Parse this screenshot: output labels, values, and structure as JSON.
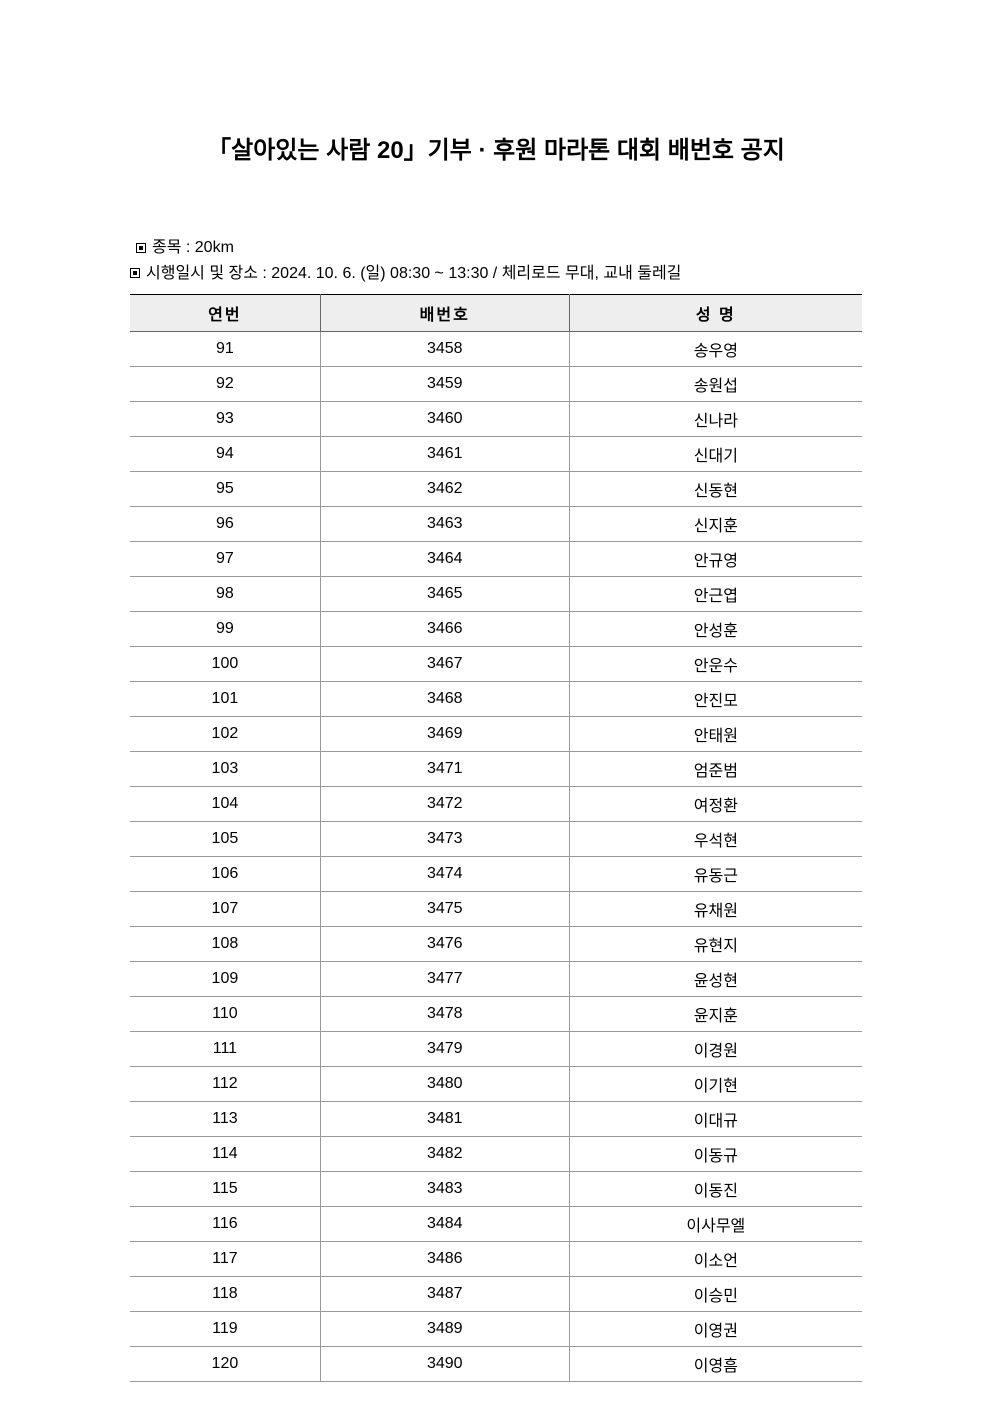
{
  "title": "「살아있는 사람 20」기부 · 후원 마라톤 대회 배번호 공지",
  "info": {
    "line1": "종목 : 20km",
    "line2": "시행일시 및 장소 : 2024. 10. 6. (일) 08:30 ~ 13:30 / 체리로드 무대, 교내 둘레길"
  },
  "table": {
    "columns": [
      "연번",
      "배번호",
      "성 명"
    ],
    "rows": [
      [
        "91",
        "3458",
        "송우영"
      ],
      [
        "92",
        "3459",
        "송원섭"
      ],
      [
        "93",
        "3460",
        "신나라"
      ],
      [
        "94",
        "3461",
        "신대기"
      ],
      [
        "95",
        "3462",
        "신동현"
      ],
      [
        "96",
        "3463",
        "신지훈"
      ],
      [
        "97",
        "3464",
        "안규영"
      ],
      [
        "98",
        "3465",
        "안근엽"
      ],
      [
        "99",
        "3466",
        "안성훈"
      ],
      [
        "100",
        "3467",
        "안운수"
      ],
      [
        "101",
        "3468",
        "안진모"
      ],
      [
        "102",
        "3469",
        "안태원"
      ],
      [
        "103",
        "3471",
        "엄준범"
      ],
      [
        "104",
        "3472",
        "여정환"
      ],
      [
        "105",
        "3473",
        "우석현"
      ],
      [
        "106",
        "3474",
        "유동근"
      ],
      [
        "107",
        "3475",
        "유채원"
      ],
      [
        "108",
        "3476",
        "유현지"
      ],
      [
        "109",
        "3477",
        "윤성현"
      ],
      [
        "110",
        "3478",
        "윤지훈"
      ],
      [
        "111",
        "3479",
        "이경원"
      ],
      [
        "112",
        "3480",
        "이기현"
      ],
      [
        "113",
        "3481",
        "이대규"
      ],
      [
        "114",
        "3482",
        "이동규"
      ],
      [
        "115",
        "3483",
        "이동진"
      ],
      [
        "116",
        "3484",
        "이사무엘"
      ],
      [
        "117",
        "3486",
        "이소언"
      ],
      [
        "118",
        "3487",
        "이승민"
      ],
      [
        "119",
        "3489",
        "이영권"
      ],
      [
        "120",
        "3490",
        "이영흠"
      ]
    ],
    "header_bg": "#eeeeee",
    "header_border_top": "#000000",
    "cell_border": "#999999",
    "text_color": "#000000",
    "background_color": "#ffffff"
  }
}
